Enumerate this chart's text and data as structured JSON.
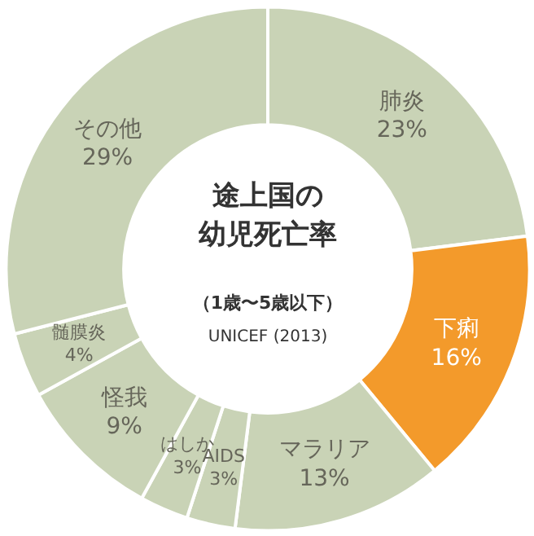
{
  "chart_data": {
    "type": "donut",
    "title": "途上国の幼児死亡率",
    "subtitle": "（1歳〜5歳以下）",
    "annotations": [
      "UNICEF (2013)"
    ],
    "categories": [
      "肺炎",
      "下痢",
      "マラリア",
      "AIDS",
      "はしか",
      "怪我",
      "髄膜炎",
      "その他"
    ],
    "values": [
      23,
      16,
      13,
      3,
      3,
      9,
      4,
      29
    ],
    "value_labels": [
      "23%",
      "16%",
      "13%",
      "3%",
      "3%",
      "9%",
      "4%",
      "29%"
    ],
    "colors": [
      "#c9d3b6",
      "#f39a2b",
      "#c9d3b6",
      "#c9d3b6",
      "#c9d3b6",
      "#c9d3b6",
      "#c9d3b6",
      "#c9d3b6"
    ]
  }
}
